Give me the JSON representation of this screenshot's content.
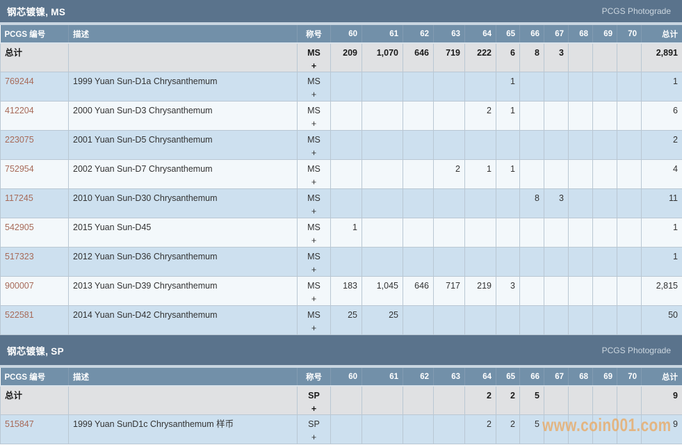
{
  "labels": {
    "photograde": "PCGS Photograde",
    "watermark": "www.coin001.com"
  },
  "columns": {
    "pcgs": "PCGS 编号",
    "desc": "描述",
    "designation": "称号",
    "grades": [
      "60",
      "61",
      "62",
      "63",
      "64",
      "65",
      "66",
      "67",
      "68",
      "69",
      "70"
    ],
    "total": "总计"
  },
  "colors": {
    "section_bar": "#5a738c",
    "header_row": "#7290a9",
    "row_blue": "#cde0ef",
    "row_light": "#f3f8fb",
    "total_row_bg": "#e0e1e3",
    "link": "#a76a58",
    "watermark": "#e9a963"
  },
  "sections": [
    {
      "title": "钢芯镀镍, MS",
      "designation_lines": [
        "MS",
        "+"
      ],
      "total_row": {
        "label": "总计",
        "grades": [
          "209",
          "1,070",
          "646",
          "719",
          "222",
          "6",
          "8",
          "3",
          "",
          "",
          ""
        ],
        "total": "2,891"
      },
      "rows": [
        {
          "pcgs": "769244",
          "desc": "1999 Yuan Sun-D1a Chrysanthemum",
          "grades": [
            "",
            "",
            "",
            "",
            "",
            "1",
            "",
            "",
            "",
            "",
            ""
          ],
          "total": "1"
        },
        {
          "pcgs": "412204",
          "desc": "2000 Yuan Sun-D3 Chrysanthemum",
          "grades": [
            "",
            "",
            "",
            "",
            "2",
            "1",
            "",
            "",
            "",
            "",
            ""
          ],
          "total": "6"
        },
        {
          "pcgs": "223075",
          "desc": "2001 Yuan Sun-D5 Chrysanthemum",
          "grades": [
            "",
            "",
            "",
            "",
            "",
            "",
            "",
            "",
            "",
            "",
            ""
          ],
          "total": "2"
        },
        {
          "pcgs": "752954",
          "desc": "2002 Yuan Sun-D7 Chrysanthemum",
          "grades": [
            "",
            "",
            "",
            "2",
            "1",
            "1",
            "",
            "",
            "",
            "",
            ""
          ],
          "total": "4"
        },
        {
          "pcgs": "117245",
          "desc": "2010 Yuan Sun-D30 Chrysanthemum",
          "grades": [
            "",
            "",
            "",
            "",
            "",
            "",
            "8",
            "3",
            "",
            "",
            ""
          ],
          "total": "11"
        },
        {
          "pcgs": "542905",
          "desc": "2015 Yuan Sun-D45",
          "grades": [
            "1",
            "",
            "",
            "",
            "",
            "",
            "",
            "",
            "",
            "",
            ""
          ],
          "total": "1"
        },
        {
          "pcgs": "517323",
          "desc": "2012 Yuan Sun-D36 Chrysanthemum",
          "grades": [
            "",
            "",
            "",
            "",
            "",
            "",
            "",
            "",
            "",
            "",
            ""
          ],
          "total": "1"
        },
        {
          "pcgs": "900007",
          "desc": "2013 Yuan Sun-D39 Chrysanthemum",
          "grades": [
            "183",
            "1,045",
            "646",
            "717",
            "219",
            "3",
            "",
            "",
            "",
            "",
            ""
          ],
          "total": "2,815"
        },
        {
          "pcgs": "522581",
          "desc": "2014 Yuan Sun-D42 Chrysanthemum",
          "grades": [
            "25",
            "25",
            "",
            "",
            "",
            "",
            "",
            "",
            "",
            "",
            ""
          ],
          "total": "50"
        }
      ]
    },
    {
      "title": "钢芯镀镍, SP",
      "designation_lines": [
        "SP",
        "+"
      ],
      "total_row": {
        "label": "总计",
        "grades": [
          "",
          "",
          "",
          "",
          "2",
          "2",
          "5",
          "",
          "",
          "",
          ""
        ],
        "total": "9"
      },
      "rows": [
        {
          "pcgs": "515847",
          "desc": "1999 Yuan SunD1c Chrysanthemum 样币",
          "grades": [
            "",
            "",
            "",
            "",
            "2",
            "2",
            "5",
            "",
            "",
            "",
            ""
          ],
          "total": "9"
        }
      ]
    }
  ]
}
